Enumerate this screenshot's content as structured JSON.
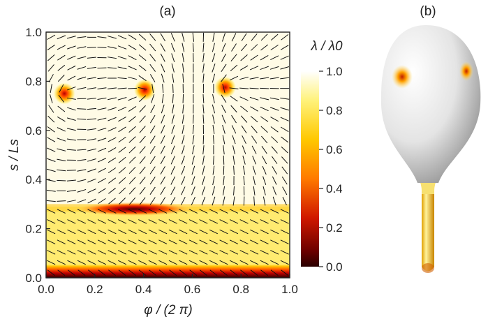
{
  "figure": {
    "panel_a_label": "(a)",
    "panel_b_label": "(b)"
  },
  "chart_data": {
    "type": "heatmap",
    "xlabel": "φ / (2 π)",
    "ylabel": "s / Ls",
    "colorbar_label": "λ / λ0",
    "xlim": [
      0.0,
      1.0
    ],
    "ylim": [
      0.0,
      1.0
    ],
    "xticks": [
      "0.0",
      "0.2",
      "0.4",
      "0.6",
      "0.8",
      "1.0"
    ],
    "yticks": [
      "0.0",
      "0.2",
      "0.4",
      "0.6",
      "0.8",
      "1.0"
    ],
    "colorbar": {
      "range": [
        0.0,
        1.0
      ],
      "ticks": [
        "0.0",
        "0.2",
        "0.4",
        "0.6",
        "0.8",
        "1.0"
      ],
      "colors": [
        "#2a0000",
        "#8b0000",
        "#e02000",
        "#ff8c00",
        "#ffd800",
        "#fff5a0",
        "#ffffff"
      ]
    },
    "defects": [
      {
        "phi": 0.075,
        "s": 0.75,
        "lambda_min": 0.3
      },
      {
        "phi": 0.405,
        "s": 0.765,
        "lambda_min": 0.35
      },
      {
        "phi": 0.735,
        "s": 0.775,
        "lambda_min": 0.35
      }
    ],
    "line_defect": {
      "phi_center": 0.36,
      "s": 0.28,
      "lambda_min": 0.15
    },
    "bands": [
      {
        "s_from": 0.0,
        "s_to": 0.045,
        "lambda": 0.1
      },
      {
        "s_from": 0.045,
        "s_to": 0.29,
        "lambda": 0.85
      },
      {
        "s_from": 0.29,
        "s_to": 1.0,
        "lambda": 1.0
      }
    ]
  }
}
